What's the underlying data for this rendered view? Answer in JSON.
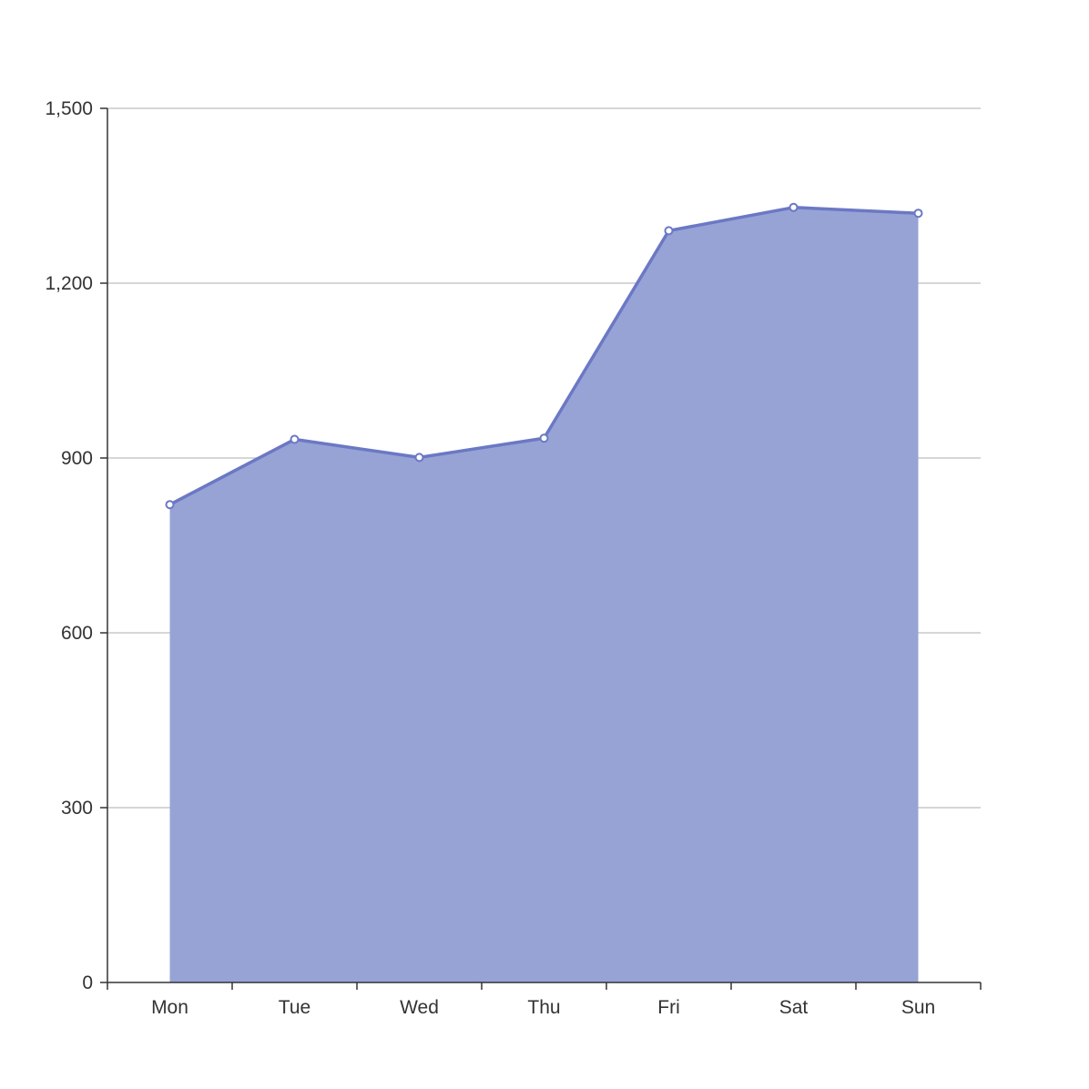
{
  "chart_data": {
    "type": "area",
    "title": "",
    "xlabel": "",
    "ylabel": "",
    "categories": [
      "Mon",
      "Tue",
      "Wed",
      "Thu",
      "Fri",
      "Sat",
      "Sun"
    ],
    "series": [
      {
        "values": [
          820,
          932,
          901,
          934,
          1290,
          1330,
          1320
        ]
      }
    ],
    "ylim": [
      0,
      1500
    ],
    "yticks": [
      0,
      300,
      600,
      900,
      1200,
      1500
    ],
    "ytick_labels": [
      "0",
      "300",
      "600",
      "900",
      "1,200",
      "1,500"
    ],
    "grid": true,
    "legend": "none",
    "colors": {
      "area_fill": "#97a3d5",
      "line": "#6b78c4",
      "marker_fill": "#ffffff",
      "grid": "#c8c8c8",
      "axis": "#333333"
    }
  }
}
